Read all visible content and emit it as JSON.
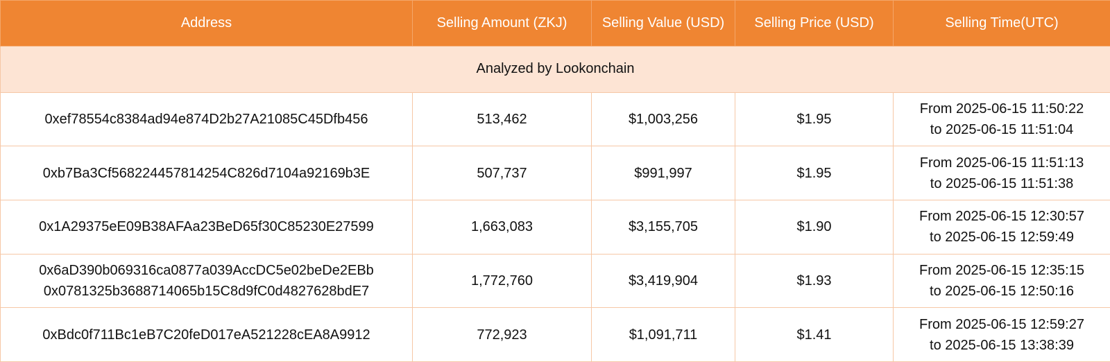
{
  "header": {
    "address": "Address",
    "amount": "Selling Amount (ZKJ)",
    "value": "Selling Value (USD)",
    "price": "Selling Price (USD)",
    "time": "Selling Time(UTC)"
  },
  "banner": "Analyzed by Lookonchain",
  "rows": [
    {
      "address": [
        "0xef78554c8384ad94e874D2b27A21085C45Dfb456"
      ],
      "amount": "513,462",
      "value": "$1,003,256",
      "price": "$1.95",
      "time_from": "From 2025-06-15 11:50:22",
      "time_to": "to 2025-06-15 11:51:04"
    },
    {
      "address": [
        "0xb7Ba3Cf568224457814254C826d7104a92169b3E"
      ],
      "amount": "507,737",
      "value": "$991,997",
      "price": "$1.95",
      "time_from": "From 2025-06-15 11:51:13",
      "time_to": "to 2025-06-15 11:51:38"
    },
    {
      "address": [
        "0x1A29375eE09B38AFAa23BeD65f30C85230E27599"
      ],
      "amount": "1,663,083",
      "value": "$3,155,705",
      "price": "$1.90",
      "time_from": "From 2025-06-15 12:30:57",
      "time_to": "to 2025-06-15 12:59:49"
    },
    {
      "address": [
        "0x6aD390b069316ca0877a039AccDC5e02beDe2EBb",
        "0x0781325b3688714065b15C8d9fC0d4827628bdE7"
      ],
      "amount": "1,772,760",
      "value": "$3,419,904",
      "price": "$1.93",
      "time_from": "From 2025-06-15 12:35:15",
      "time_to": "to 2025-06-15 12:50:16"
    },
    {
      "address": [
        "0xBdc0f711Bc1eB7C20feD017eA521228cEA8A9912"
      ],
      "amount": "772,923",
      "value": "$1,091,711",
      "price": "$1.41",
      "time_from": "From 2025-06-15 12:59:27",
      "time_to": "to 2025-06-15 13:38:39"
    }
  ],
  "colors": {
    "header_bg": "#ef8532",
    "banner_bg": "#fde4d4",
    "grid_line": "#f6c7a6"
  }
}
